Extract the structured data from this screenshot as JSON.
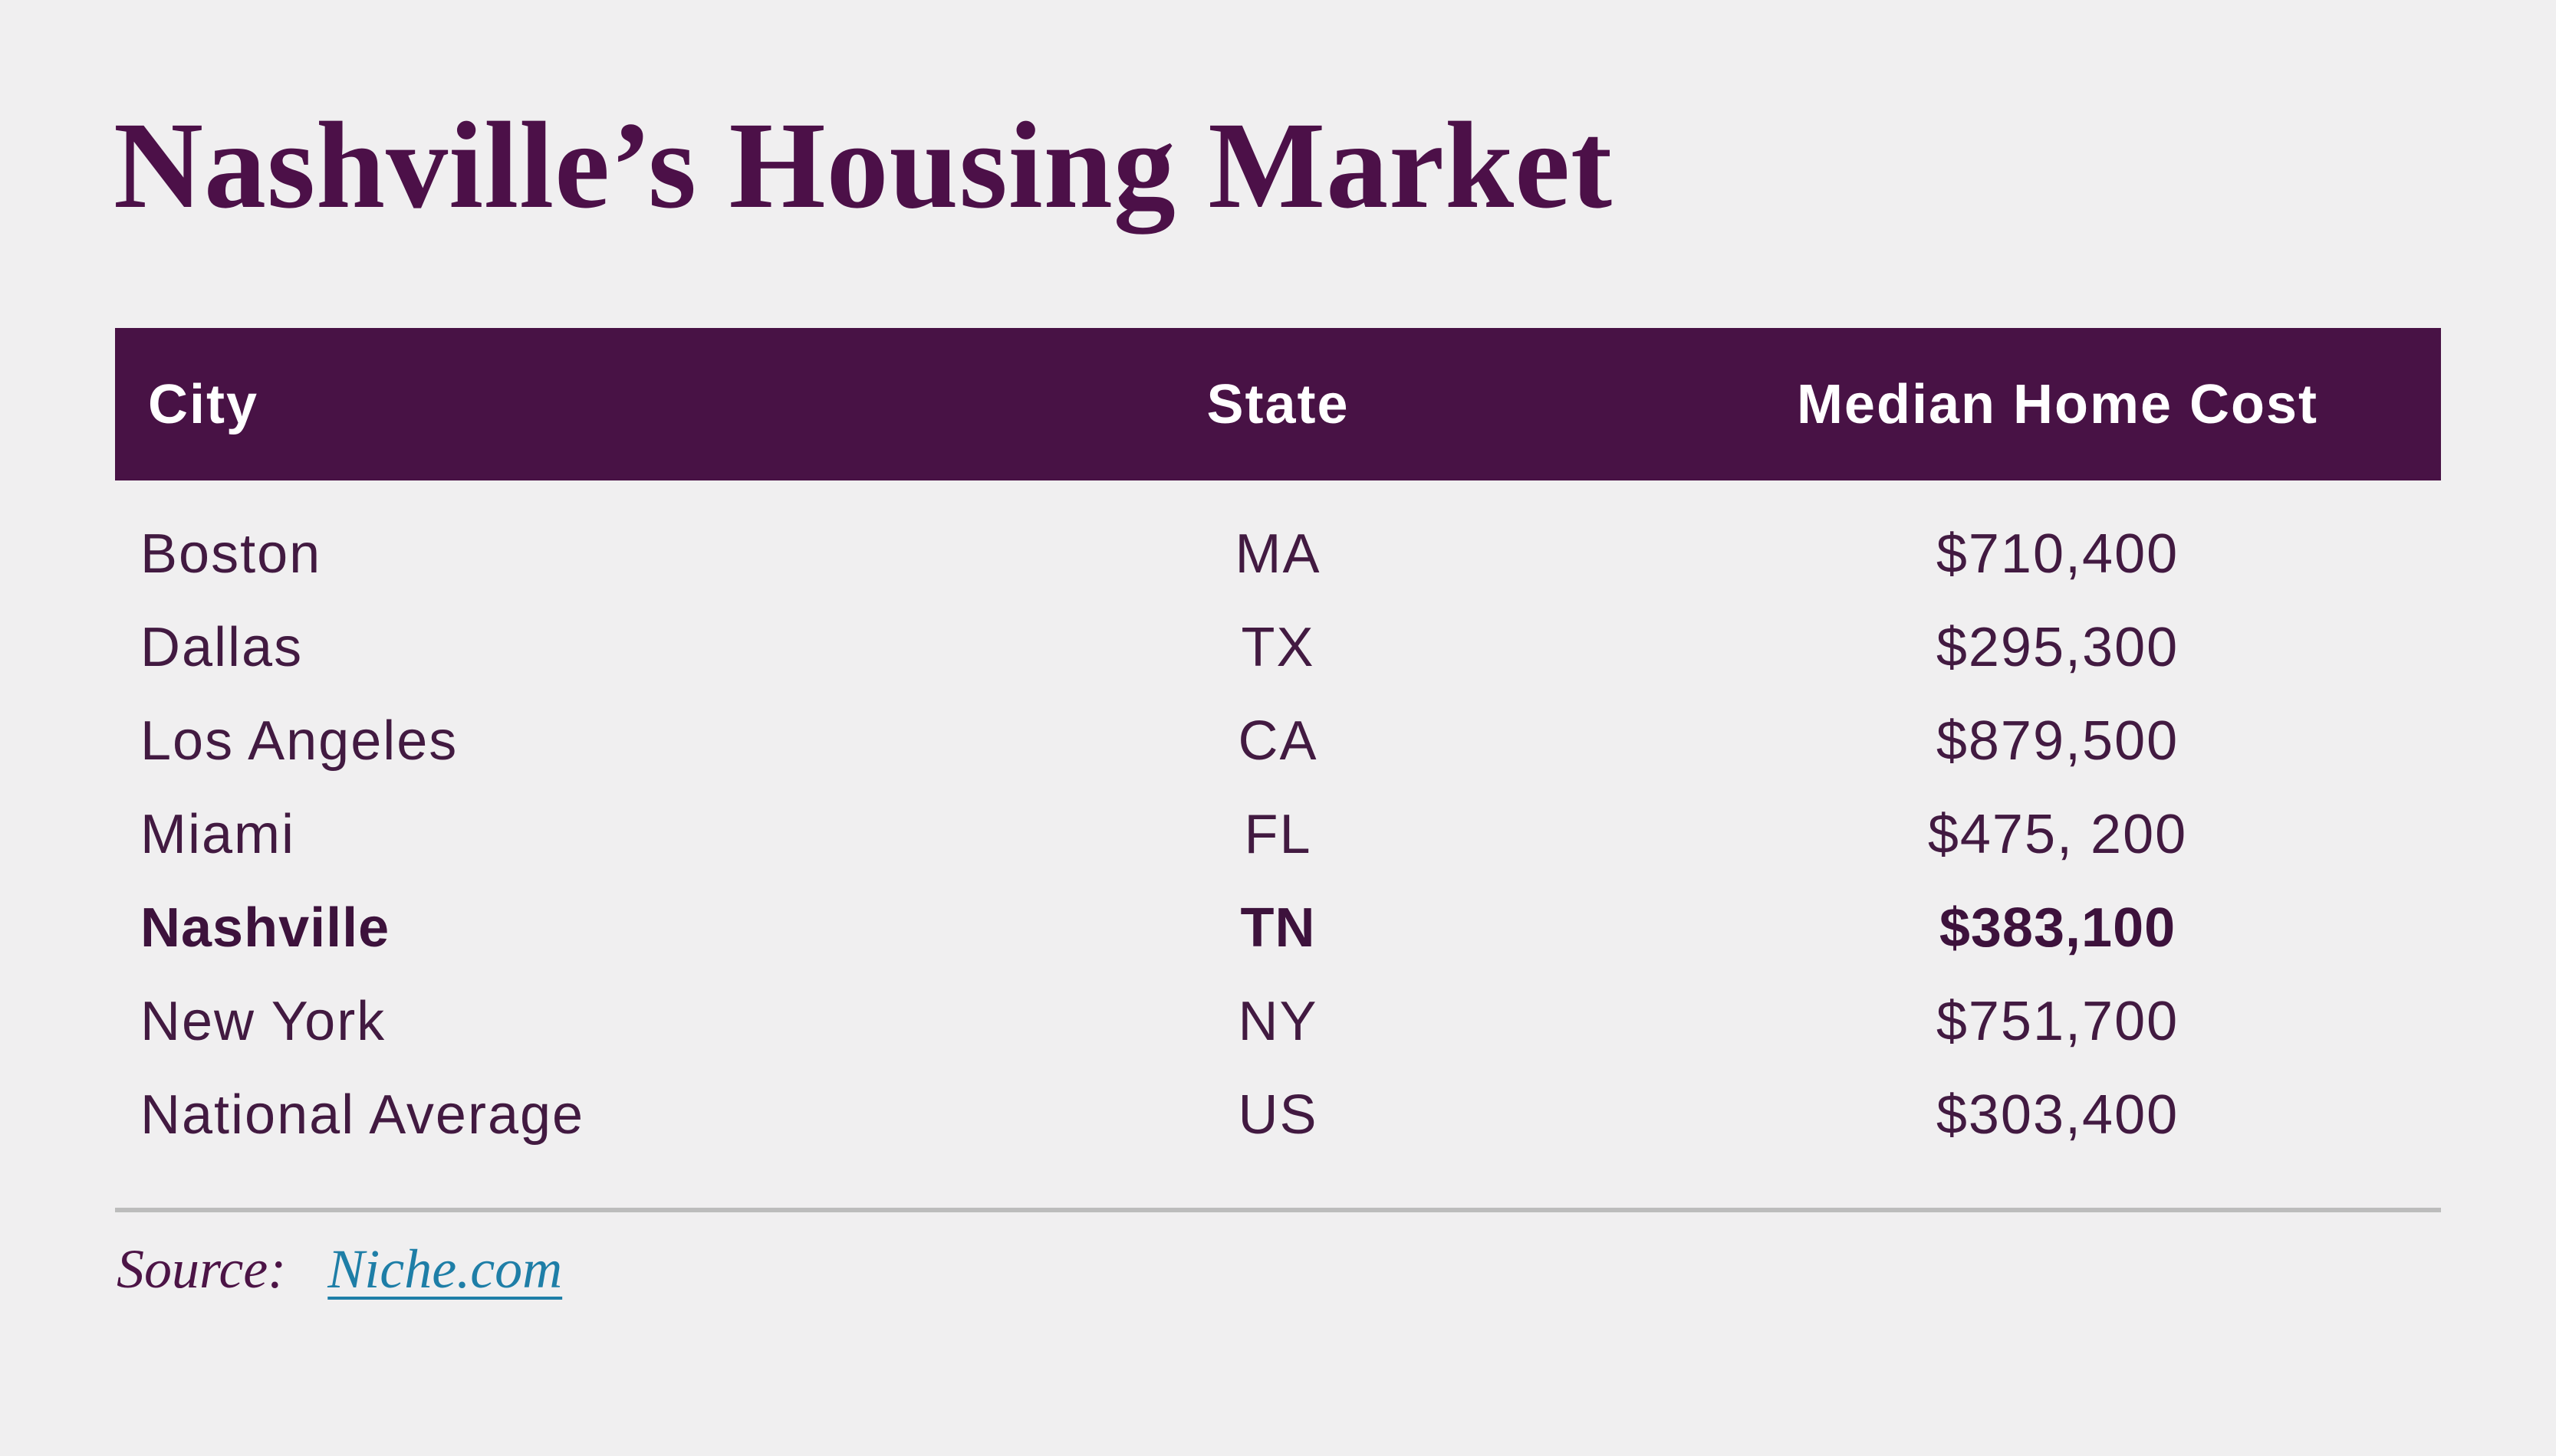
{
  "chart_data": {
    "type": "table",
    "title": "Nashville’s Housing Market",
    "columns": [
      "City",
      "State",
      "Median Home Cost"
    ],
    "rows": [
      {
        "city": "Boston",
        "state": "MA",
        "cost": "$710,400",
        "bold": false
      },
      {
        "city": "Dallas",
        "state": "TX",
        "cost": "$295,300",
        "bold": false
      },
      {
        "city": "Los Angeles",
        "state": "CA",
        "cost": "$879,500",
        "bold": false
      },
      {
        "city": "Miami",
        "state": "FL",
        "cost": "$475, 200",
        "bold": false
      },
      {
        "city": "Nashville",
        "state": "TN",
        "cost": "$383,100",
        "bold": true
      },
      {
        "city": "New York",
        "state": "NY",
        "cost": "$751,700",
        "bold": false
      },
      {
        "city": "National Average",
        "state": "US",
        "cost": "$303,400",
        "bold": false
      }
    ],
    "highlighted_row": "Nashville",
    "source_label": "Source:",
    "source_link": "Niche.com",
    "layout_hints": {
      "header_position": "top",
      "grid": "off",
      "divider_above_source": true
    }
  },
  "colors": {
    "background": "#f0eff0",
    "header_bg": "#481245",
    "header_text": "#ffffff",
    "title_text": "#4c1048",
    "row_text": "#421a41",
    "link": "#1e7ea7",
    "divider": "#bcbcbc"
  }
}
